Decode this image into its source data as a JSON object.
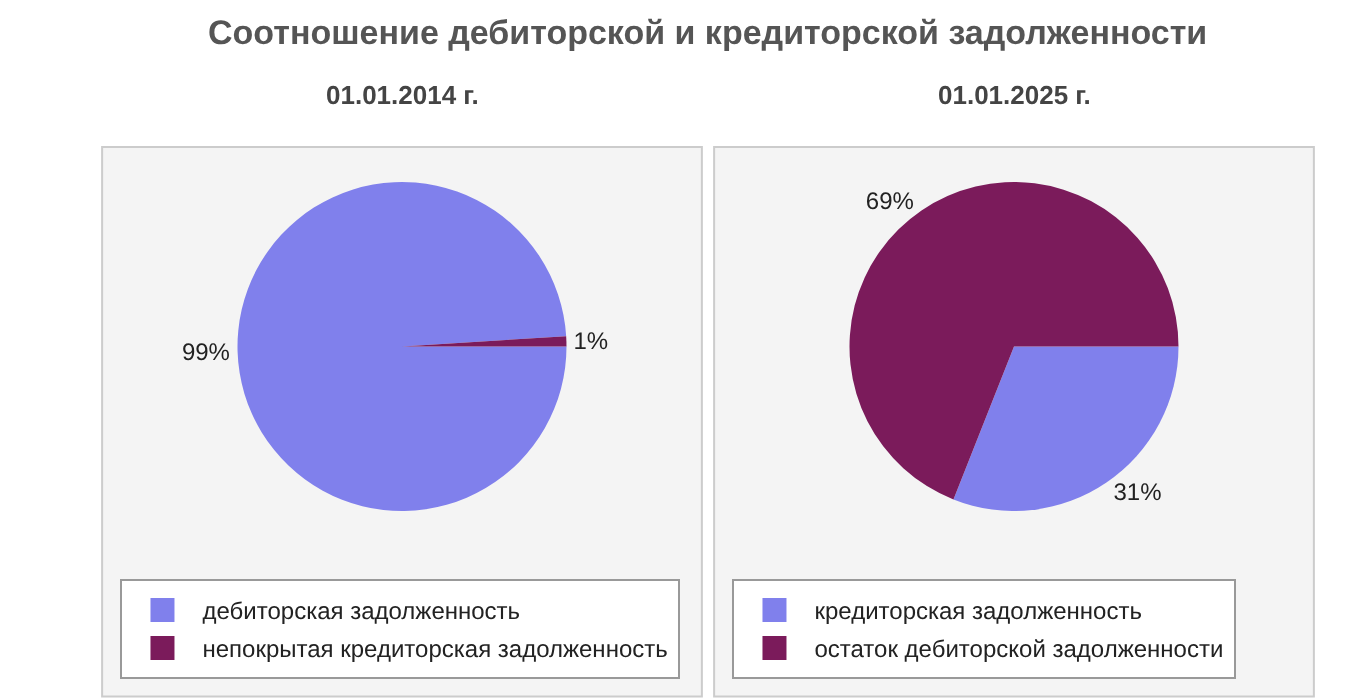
{
  "chart_data": [
    {
      "type": "pie",
      "title": "Соотношение дебиторской и кредиторской задолженности",
      "subtitle": "01.01.2014 г.",
      "categories": [
        "дебиторская задолженность",
        "непокрытая кредиторская задолженность"
      ],
      "values": [
        99,
        1
      ],
      "value_labels": [
        "99%",
        "1%"
      ],
      "colors": [
        "#8080ec",
        "#7b1b5b"
      ],
      "legend": "bottom"
    },
    {
      "type": "pie",
      "subtitle": "01.01.2025 г.",
      "categories": [
        "кредиторская задолженность",
        "остаток дебиторской задолженности"
      ],
      "values": [
        31,
        69
      ],
      "value_labels": [
        "31%",
        "69%"
      ],
      "colors": [
        "#8080ec",
        "#7b1b5b"
      ],
      "legend": "bottom"
    }
  ]
}
